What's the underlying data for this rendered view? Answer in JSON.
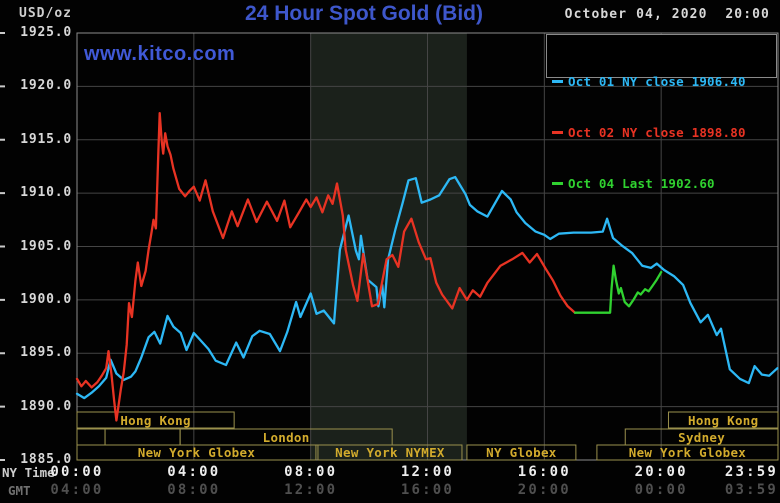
{
  "header": {
    "title": "24 Hour Spot Gold (Bid)",
    "date": "October 04, 2020  20:00",
    "watermark": "www.kitco.com",
    "unit_label": "USD/oz"
  },
  "legend": {
    "entries": [
      {
        "label": "Oct 01 NY close 1906.40",
        "color": "#2db8f5"
      },
      {
        "label": "Oct 02 NY close 1898.80",
        "color": "#e83323"
      },
      {
        "label": "Oct 04 Last 1902.60",
        "color": "#30d230"
      }
    ]
  },
  "axis": {
    "y_ticks": [
      "1925.0",
      "1920.0",
      "1915.0",
      "1910.0",
      "1905.0",
      "1900.0",
      "1895.0",
      "1890.0",
      "1885.0"
    ],
    "x_tick_hours": [
      0,
      4,
      8,
      12,
      16,
      20,
      24
    ],
    "x_ticks_ny": [
      "00:00",
      "04:00",
      "08:00",
      "12:00",
      "16:00",
      "20:00",
      "23:59"
    ],
    "x_ticks_gmt": [
      "04:00",
      "08:00",
      "12:00",
      "16:00",
      "20:00",
      "00:00",
      "03:59"
    ],
    "row_label_ny": "NY Time",
    "row_label_gmt": "GMT"
  },
  "sessions": {
    "border_color": "#9b914d",
    "text_color": "#d2ab2d",
    "rows": [
      [
        {
          "label": "Hong Kong",
          "start": 0,
          "end": 5.38
        },
        {
          "label": "Hong Kong",
          "start": 20.25,
          "end": 24
        }
      ],
      [
        {
          "label": "",
          "start": 0,
          "end": 0.96
        },
        {
          "label": "",
          "start": 0.96,
          "end": 3.53
        },
        {
          "label": "London",
          "start": 3.53,
          "end": 10.79
        },
        {
          "label": "Sydney",
          "start": 18.77,
          "end": 24
        }
      ],
      [
        {
          "label": "New York Globex",
          "start": 0,
          "end": 8.18
        },
        {
          "label": "New York NYMEX",
          "start": 8.25,
          "end": 13.18
        },
        {
          "label": "NY Globex",
          "start": 13.35,
          "end": 17.08
        },
        {
          "label": "New York Globex",
          "start": 17.8,
          "end": 24
        }
      ]
    ]
  },
  "chart_data": {
    "type": "line",
    "title": "24 Hour Spot Gold (Bid)",
    "xlabel": "NY Time (hours)",
    "ylabel": "USD/oz",
    "xlim": [
      0,
      24
    ],
    "ylim": [
      1885,
      1925
    ],
    "y_grid_step": 5,
    "x_grid_step_hours": 4,
    "grid": true,
    "legend_position": "top-right",
    "background_color": "#020202",
    "grid_color": "#454545",
    "border_color": "#8c8c8c",
    "shaded_region": {
      "start_hour": 8.0,
      "end_hour": 13.35,
      "color": "#1b211b",
      "meaning": "New York NYMEX floor session"
    },
    "series": [
      {
        "name": "Oct 01 NY close 1906.40",
        "color": "#2db8f5",
        "points": [
          [
            0,
            1891.2
          ],
          [
            0.25,
            1890.8
          ],
          [
            0.5,
            1891.3
          ],
          [
            0.75,
            1891.9
          ],
          [
            1,
            1892.7
          ],
          [
            1.15,
            1894.4
          ],
          [
            1.35,
            1893.1
          ],
          [
            1.6,
            1892.5
          ],
          [
            1.85,
            1892.8
          ],
          [
            2,
            1893.3
          ],
          [
            2.2,
            1894.6
          ],
          [
            2.45,
            1896.5
          ],
          [
            2.65,
            1897.0
          ],
          [
            2.85,
            1895.9
          ],
          [
            3.1,
            1898.5
          ],
          [
            3.3,
            1897.5
          ],
          [
            3.55,
            1896.9
          ],
          [
            3.75,
            1895.3
          ],
          [
            4,
            1896.9
          ],
          [
            4.2,
            1896.3
          ],
          [
            4.5,
            1895.4
          ],
          [
            4.75,
            1894.3
          ],
          [
            5.1,
            1893.9
          ],
          [
            5.45,
            1896.0
          ],
          [
            5.7,
            1894.6
          ],
          [
            6,
            1896.6
          ],
          [
            6.25,
            1897.1
          ],
          [
            6.6,
            1896.8
          ],
          [
            6.95,
            1895.2
          ],
          [
            7.2,
            1897.0
          ],
          [
            7.5,
            1899.8
          ],
          [
            7.65,
            1898.4
          ],
          [
            8,
            1900.6
          ],
          [
            8.2,
            1898.7
          ],
          [
            8.45,
            1899.0
          ],
          [
            8.8,
            1897.8
          ],
          [
            9,
            1904.7
          ],
          [
            9.3,
            1907.9
          ],
          [
            9.55,
            1904.6
          ],
          [
            9.65,
            1903.8
          ],
          [
            9.72,
            1906.0
          ],
          [
            9.95,
            1901.9
          ],
          [
            10.25,
            1901.2
          ],
          [
            10.32,
            1899.4
          ],
          [
            10.45,
            1901.4
          ],
          [
            10.52,
            1899.3
          ],
          [
            10.65,
            1903.8
          ],
          [
            10.9,
            1906.6
          ],
          [
            11.15,
            1909.1
          ],
          [
            11.35,
            1911.2
          ],
          [
            11.6,
            1911.4
          ],
          [
            11.8,
            1909.1
          ],
          [
            12.1,
            1909.4
          ],
          [
            12.4,
            1909.8
          ],
          [
            12.75,
            1911.3
          ],
          [
            12.95,
            1911.5
          ],
          [
            13.3,
            1909.9
          ],
          [
            13.45,
            1908.9
          ],
          [
            13.7,
            1908.3
          ],
          [
            14.05,
            1907.8
          ],
          [
            14.55,
            1910.2
          ],
          [
            14.85,
            1909.4
          ],
          [
            15.05,
            1908.2
          ],
          [
            15.35,
            1907.2
          ],
          [
            15.7,
            1906.4
          ],
          [
            16,
            1906.1
          ],
          [
            16.2,
            1905.7
          ],
          [
            16.5,
            1906.2
          ],
          [
            17,
            1906.3
          ],
          [
            17.6,
            1906.3
          ],
          [
            18,
            1906.4
          ],
          [
            18.15,
            1907.6
          ],
          [
            18.35,
            1905.8
          ],
          [
            18.65,
            1905.1
          ],
          [
            19,
            1904.4
          ],
          [
            19.35,
            1903.2
          ],
          [
            19.65,
            1903.0
          ],
          [
            19.85,
            1903.4
          ],
          [
            20.1,
            1902.8
          ],
          [
            20.45,
            1902.2
          ],
          [
            20.75,
            1901.4
          ],
          [
            21,
            1899.7
          ],
          [
            21.35,
            1897.9
          ],
          [
            21.6,
            1898.6
          ],
          [
            21.9,
            1896.7
          ],
          [
            22.05,
            1897.3
          ],
          [
            22.35,
            1893.5
          ],
          [
            22.7,
            1892.6
          ],
          [
            23,
            1892.2
          ],
          [
            23.2,
            1893.8
          ],
          [
            23.45,
            1893.0
          ],
          [
            23.7,
            1892.9
          ],
          [
            23.98,
            1893.6
          ]
        ]
      },
      {
        "name": "Oct 02 NY close 1898.80",
        "color": "#e83323",
        "points": [
          [
            0,
            1892.6
          ],
          [
            0.15,
            1891.9
          ],
          [
            0.3,
            1892.4
          ],
          [
            0.5,
            1891.8
          ],
          [
            0.7,
            1892.3
          ],
          [
            0.85,
            1892.9
          ],
          [
            1,
            1893.6
          ],
          [
            1.08,
            1895.2
          ],
          [
            1.18,
            1893.0
          ],
          [
            1.27,
            1890.6
          ],
          [
            1.35,
            1888.7
          ],
          [
            1.5,
            1891.6
          ],
          [
            1.6,
            1893.2
          ],
          [
            1.7,
            1895.8
          ],
          [
            1.78,
            1899.7
          ],
          [
            1.88,
            1898.4
          ],
          [
            2,
            1901.8
          ],
          [
            2.08,
            1903.5
          ],
          [
            2.2,
            1901.3
          ],
          [
            2.35,
            1902.7
          ],
          [
            2.45,
            1904.7
          ],
          [
            2.55,
            1906.3
          ],
          [
            2.62,
            1907.5
          ],
          [
            2.7,
            1906.7
          ],
          [
            2.78,
            1913.4
          ],
          [
            2.83,
            1917.5
          ],
          [
            2.9,
            1914.9
          ],
          [
            2.95,
            1913.7
          ],
          [
            3.02,
            1915.6
          ],
          [
            3.1,
            1914.4
          ],
          [
            3.2,
            1913.6
          ],
          [
            3.3,
            1912.3
          ],
          [
            3.5,
            1910.4
          ],
          [
            3.7,
            1909.7
          ],
          [
            3.85,
            1910.2
          ],
          [
            4,
            1910.6
          ],
          [
            4.2,
            1909.3
          ],
          [
            4.4,
            1911.2
          ],
          [
            4.65,
            1908.3
          ],
          [
            5,
            1905.8
          ],
          [
            5.3,
            1908.3
          ],
          [
            5.5,
            1906.9
          ],
          [
            5.85,
            1909.4
          ],
          [
            6.15,
            1907.3
          ],
          [
            6.5,
            1909.2
          ],
          [
            6.85,
            1907.4
          ],
          [
            7.1,
            1909.3
          ],
          [
            7.3,
            1906.8
          ],
          [
            7.6,
            1908.2
          ],
          [
            7.85,
            1909.4
          ],
          [
            8,
            1908.7
          ],
          [
            8.2,
            1909.6
          ],
          [
            8.4,
            1908.2
          ],
          [
            8.6,
            1909.8
          ],
          [
            8.75,
            1909.0
          ],
          [
            8.9,
            1910.9
          ],
          [
            9.1,
            1907.9
          ],
          [
            9.2,
            1904.7
          ],
          [
            9.45,
            1901.4
          ],
          [
            9.6,
            1899.9
          ],
          [
            9.8,
            1904.3
          ],
          [
            10.1,
            1899.4
          ],
          [
            10.3,
            1899.6
          ],
          [
            10.6,
            1903.8
          ],
          [
            10.8,
            1904.2
          ],
          [
            11,
            1903.1
          ],
          [
            11.2,
            1906.4
          ],
          [
            11.45,
            1907.6
          ],
          [
            11.7,
            1905.4
          ],
          [
            11.95,
            1903.8
          ],
          [
            12.1,
            1903.9
          ],
          [
            12.3,
            1901.6
          ],
          [
            12.5,
            1900.5
          ],
          [
            12.85,
            1899.2
          ],
          [
            13.1,
            1901.1
          ],
          [
            13.35,
            1900.0
          ],
          [
            13.55,
            1900.9
          ],
          [
            13.8,
            1900.3
          ],
          [
            14.05,
            1901.6
          ],
          [
            14.5,
            1903.2
          ],
          [
            14.9,
            1903.8
          ],
          [
            15.25,
            1904.4
          ],
          [
            15.5,
            1903.5
          ],
          [
            15.75,
            1904.3
          ],
          [
            16.05,
            1902.9
          ],
          [
            16.3,
            1901.8
          ],
          [
            16.55,
            1900.4
          ],
          [
            16.8,
            1899.4
          ],
          [
            17.05,
            1898.8
          ]
        ]
      },
      {
        "name": "Oct 04 Last 1902.60",
        "color": "#30d230",
        "points": [
          [
            17.05,
            1898.8
          ],
          [
            18.25,
            1898.8
          ],
          [
            18.3,
            1901.0
          ],
          [
            18.37,
            1903.2
          ],
          [
            18.45,
            1901.9
          ],
          [
            18.55,
            1900.6
          ],
          [
            18.62,
            1901.1
          ],
          [
            18.75,
            1899.8
          ],
          [
            18.9,
            1899.4
          ],
          [
            19.05,
            1900.0
          ],
          [
            19.2,
            1900.7
          ],
          [
            19.3,
            1900.5
          ],
          [
            19.45,
            1901.0
          ],
          [
            19.57,
            1900.8
          ],
          [
            19.7,
            1901.3
          ],
          [
            19.85,
            1901.9
          ],
          [
            20,
            1902.6
          ]
        ]
      }
    ]
  }
}
